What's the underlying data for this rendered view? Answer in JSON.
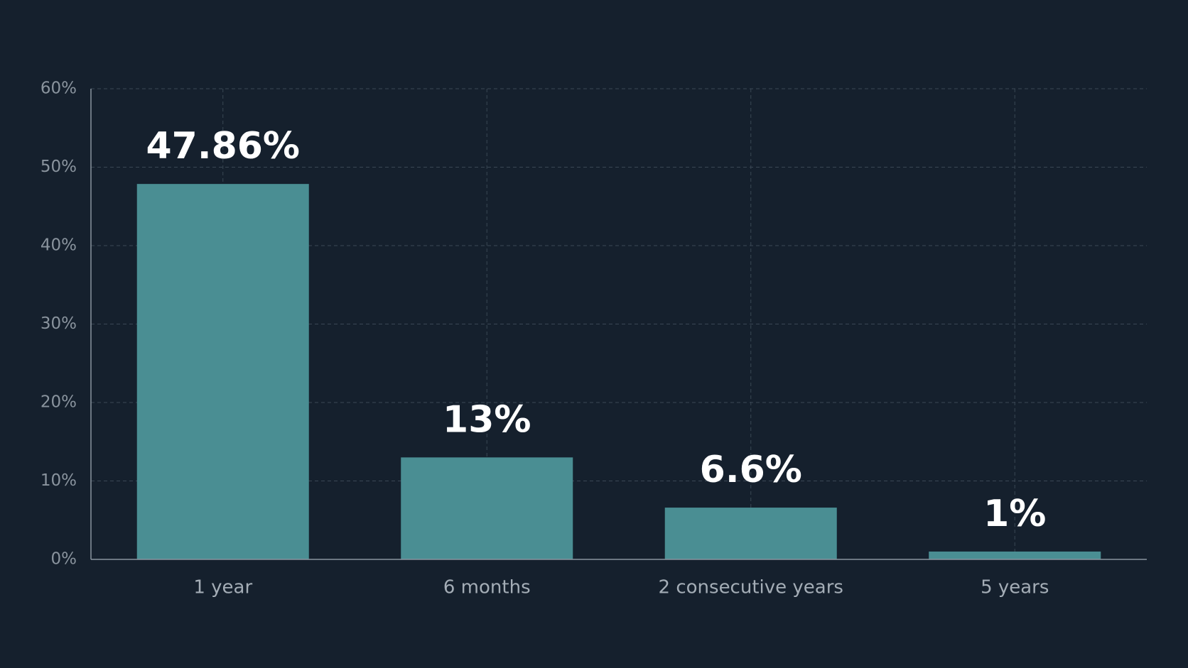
{
  "chart_data": {
    "type": "bar",
    "categories": [
      "1 year",
      "6 months",
      "2 consecutive years",
      "5 years"
    ],
    "values": [
      47.86,
      13,
      6.6,
      1
    ],
    "value_labels": [
      "47.86%",
      "13%",
      "6.6%",
      "1%"
    ],
    "color": "#4a8e93",
    "ylim": [
      0,
      60
    ],
    "yticks": [
      {
        "value": 0,
        "label": "0%"
      },
      {
        "value": 10,
        "label": "10%"
      },
      {
        "value": 20,
        "label": "20%"
      },
      {
        "value": 30,
        "label": "30%"
      },
      {
        "value": 40,
        "label": "40%"
      },
      {
        "value": 50,
        "label": "50%"
      },
      {
        "value": 60,
        "label": "60%"
      }
    ],
    "grid": true
  }
}
